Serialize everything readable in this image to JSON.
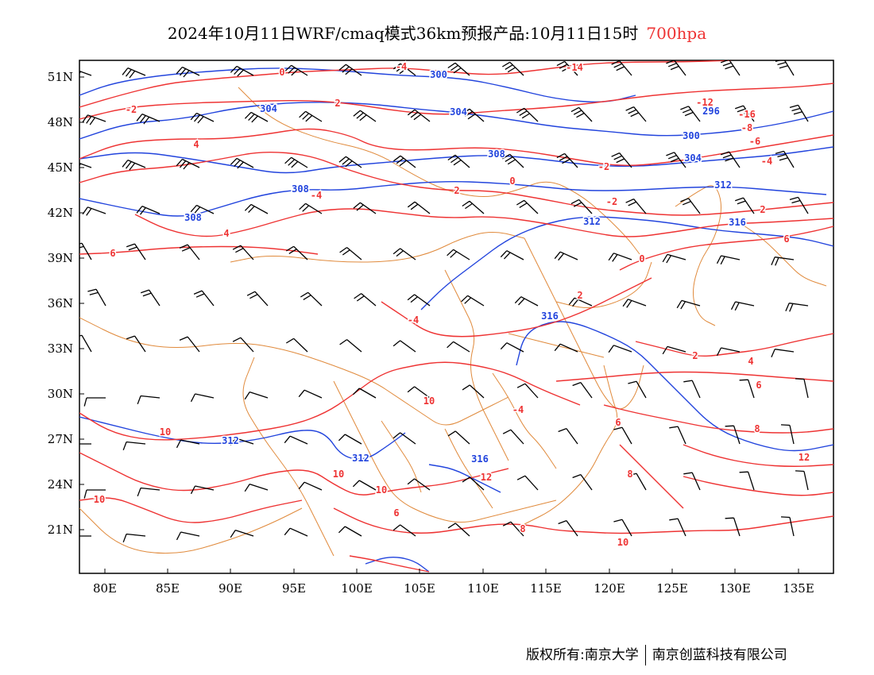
{
  "title": {
    "main": "2024年10月11日WRF/cmaq模式36km预报产品:10月11日15时",
    "level": "700hpa",
    "level_color": "#ee3333"
  },
  "axes": {
    "lat_labels": [
      "51N",
      "48N",
      "45N",
      "42N",
      "39N",
      "36N",
      "33N",
      "30N",
      "27N",
      "24N",
      "21N"
    ],
    "lon_labels": [
      "80E",
      "85E",
      "90E",
      "95E",
      "100E",
      "105E",
      "110E",
      "115E",
      "120E",
      "125E",
      "130E",
      "135E"
    ]
  },
  "colors": {
    "temperature_contour": "#ee3333",
    "geopotential_contour": "#2244dd",
    "boundary": "#e08a3c",
    "wind_barb": "#000000"
  },
  "contour_labels": {
    "temperature": [
      "0",
      "-4",
      "-14",
      "-2",
      "-12",
      "2",
      "-16",
      "-8",
      "4",
      "-6",
      "-4",
      "-2",
      "2",
      "-4",
      "0",
      "4",
      "2",
      "6",
      "-2",
      "6",
      "0",
      "2",
      "-4",
      "2",
      "4",
      "6",
      "8",
      "10",
      "-4",
      "6",
      "12",
      "10",
      "8",
      "10",
      "10",
      "6",
      "8",
      "10",
      "10",
      "12"
    ],
    "geopotential": [
      "300",
      "304",
      "304",
      "296",
      "300",
      "308",
      "304",
      "308",
      "308",
      "312",
      "312",
      "316",
      "316",
      "312",
      "312",
      "316"
    ]
  },
  "footer": {
    "left": "版权所有:南京大学",
    "right": "南京创蓝科技有限公司"
  }
}
